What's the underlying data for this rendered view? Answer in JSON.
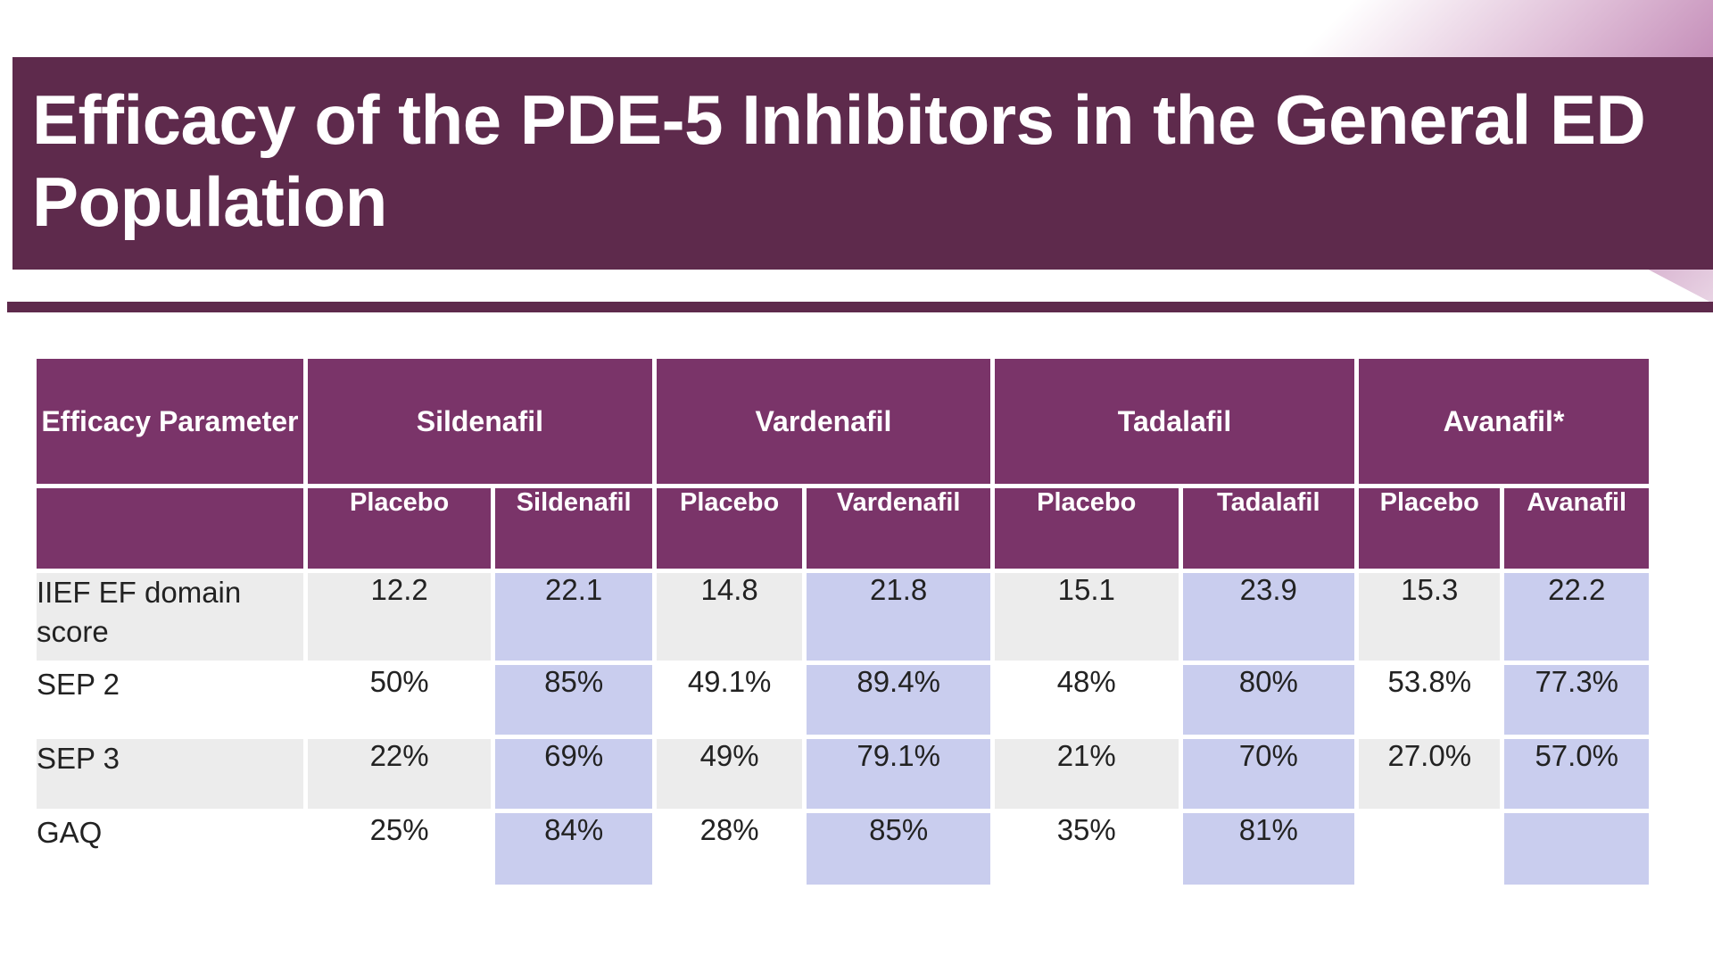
{
  "title": "Efficacy of the PDE-5 Inhibitors in the General ED Population",
  "colors": {
    "title_bar": "#5e2a4c",
    "header": "#7a3469",
    "drug_column": "#c9cdee",
    "grey_row": "#ececec"
  },
  "table": {
    "param_header": "Efficacy Parameter",
    "groups": [
      "Sildenafil",
      "Vardenafil",
      "Tadalafil",
      "Avanafil*"
    ],
    "subheaders": [
      "Placebo",
      "Sildenafil",
      "Placebo",
      "Vardenafil",
      "Placebo",
      "Tadalafil",
      "Placebo",
      "Avanafil"
    ],
    "rows": [
      {
        "label": "IIEF EF domain score",
        "values": [
          "12.2",
          "22.1",
          "14.8",
          "21.8",
          "15.1",
          "23.9",
          "15.3",
          "22.2"
        ]
      },
      {
        "label": "SEP 2",
        "values": [
          "50%",
          "85%",
          "49.1%",
          "89.4%",
          "48%",
          "80%",
          "53.8%",
          "77.3%"
        ]
      },
      {
        "label": "SEP 3",
        "values": [
          "22%",
          "69%",
          "49%",
          "79.1%",
          "21%",
          "70%",
          "27.0%",
          "57.0%"
        ]
      },
      {
        "label": "GAQ",
        "values": [
          "25%",
          "84%",
          "28%",
          "85%",
          "35%",
          "81%",
          "",
          ""
        ]
      }
    ]
  }
}
